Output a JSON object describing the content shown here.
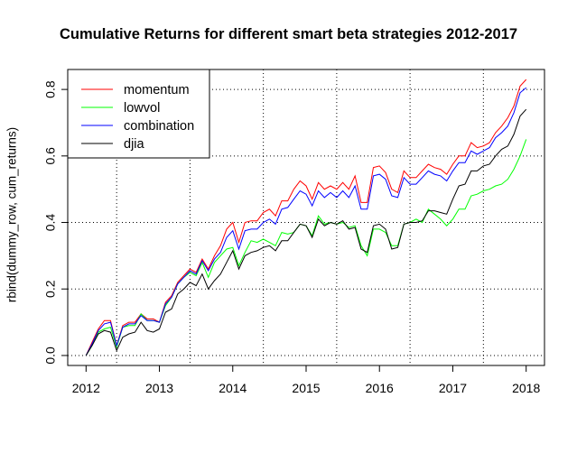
{
  "chart_data": {
    "type": "line",
    "title": "Cumulative Returns for different smart beta strategies 2012-2017",
    "xlabel": "",
    "ylabel": "rbind(dummy_row, cum_returns)",
    "xlim": [
      2011.75,
      2018.25
    ],
    "ylim": [
      -0.03,
      0.86
    ],
    "x_ticks": [
      "2012",
      "2013",
      "2014",
      "2015",
      "2016",
      "2017",
      "2018"
    ],
    "y_ticks": [
      "0.0",
      "0.2",
      "0.4",
      "0.6",
      "0.8"
    ],
    "grid": "dotted",
    "legend": "top-left",
    "series": [
      {
        "name": "momentum",
        "color": "#ff0000",
        "x": [
          2012.0,
          2012.083,
          2012.167,
          2012.25,
          2012.333,
          2012.417,
          2012.5,
          2012.583,
          2012.667,
          2012.75,
          2012.833,
          2012.917,
          2013.0,
          2013.083,
          2013.167,
          2013.25,
          2013.333,
          2013.417,
          2013.5,
          2013.583,
          2013.667,
          2013.75,
          2013.833,
          2013.917,
          2014.0,
          2014.083,
          2014.167,
          2014.25,
          2014.333,
          2014.417,
          2014.5,
          2014.583,
          2014.667,
          2014.75,
          2014.833,
          2014.917,
          2015.0,
          2015.083,
          2015.167,
          2015.25,
          2015.333,
          2015.417,
          2015.5,
          2015.583,
          2015.667,
          2015.75,
          2015.833,
          2015.917,
          2016.0,
          2016.083,
          2016.167,
          2016.25,
          2016.333,
          2016.417,
          2016.5,
          2016.583,
          2016.667,
          2016.75,
          2016.833,
          2016.917,
          2017.0,
          2017.083,
          2017.167,
          2017.25,
          2017.333,
          2017.417,
          2017.5,
          2017.583,
          2017.667,
          2017.75,
          2017.833,
          2017.917,
          2018.0
        ],
        "y": [
          0.0,
          0.04,
          0.08,
          0.105,
          0.105,
          0.03,
          0.09,
          0.1,
          0.1,
          0.125,
          0.11,
          0.11,
          0.1,
          0.16,
          0.18,
          0.22,
          0.24,
          0.26,
          0.25,
          0.29,
          0.26,
          0.3,
          0.33,
          0.38,
          0.4,
          0.34,
          0.4,
          0.405,
          0.405,
          0.43,
          0.44,
          0.42,
          0.465,
          0.465,
          0.5,
          0.525,
          0.51,
          0.47,
          0.52,
          0.5,
          0.51,
          0.5,
          0.52,
          0.5,
          0.54,
          0.46,
          0.46,
          0.565,
          0.57,
          0.55,
          0.5,
          0.49,
          0.555,
          0.535,
          0.535,
          0.555,
          0.575,
          0.565,
          0.56,
          0.545,
          0.575,
          0.6,
          0.6,
          0.64,
          0.625,
          0.63,
          0.64,
          0.67,
          0.69,
          0.715,
          0.75,
          0.81,
          0.83
        ]
      },
      {
        "name": "lowvol",
        "color": "#00ff00",
        "x": [
          2012.0,
          2012.083,
          2012.167,
          2012.25,
          2012.333,
          2012.417,
          2012.5,
          2012.583,
          2012.667,
          2012.75,
          2012.833,
          2012.917,
          2013.0,
          2013.083,
          2013.167,
          2013.25,
          2013.333,
          2013.417,
          2013.5,
          2013.583,
          2013.667,
          2013.75,
          2013.833,
          2013.917,
          2014.0,
          2014.083,
          2014.167,
          2014.25,
          2014.333,
          2014.417,
          2014.5,
          2014.583,
          2014.667,
          2014.75,
          2014.833,
          2014.917,
          2015.0,
          2015.083,
          2015.167,
          2015.25,
          2015.333,
          2015.417,
          2015.5,
          2015.583,
          2015.667,
          2015.75,
          2015.833,
          2015.917,
          2016.0,
          2016.083,
          2016.167,
          2016.25,
          2016.333,
          2016.417,
          2016.5,
          2016.583,
          2016.667,
          2016.75,
          2016.833,
          2016.917,
          2017.0,
          2017.083,
          2017.167,
          2017.25,
          2017.333,
          2017.417,
          2017.5,
          2017.583,
          2017.667,
          2017.75,
          2017.833,
          2017.917,
          2018.0
        ],
        "y": [
          0.0,
          0.03,
          0.07,
          0.08,
          0.085,
          0.025,
          0.085,
          0.09,
          0.09,
          0.125,
          0.105,
          0.105,
          0.1,
          0.15,
          0.175,
          0.215,
          0.235,
          0.25,
          0.24,
          0.28,
          0.235,
          0.28,
          0.3,
          0.32,
          0.325,
          0.27,
          0.31,
          0.345,
          0.34,
          0.35,
          0.34,
          0.33,
          0.37,
          0.365,
          0.37,
          0.395,
          0.39,
          0.36,
          0.42,
          0.395,
          0.4,
          0.395,
          0.4,
          0.385,
          0.39,
          0.33,
          0.3,
          0.38,
          0.38,
          0.37,
          0.33,
          0.33,
          0.395,
          0.4,
          0.41,
          0.4,
          0.44,
          0.425,
          0.41,
          0.39,
          0.41,
          0.44,
          0.44,
          0.48,
          0.485,
          0.495,
          0.5,
          0.51,
          0.515,
          0.53,
          0.56,
          0.6,
          0.65
        ]
      },
      {
        "name": "combination",
        "color": "#0000ff",
        "x": [
          2012.0,
          2012.083,
          2012.167,
          2012.25,
          2012.333,
          2012.417,
          2012.5,
          2012.583,
          2012.667,
          2012.75,
          2012.833,
          2012.917,
          2013.0,
          2013.083,
          2013.167,
          2013.25,
          2013.333,
          2013.417,
          2013.5,
          2013.583,
          2013.667,
          2013.75,
          2013.833,
          2013.917,
          2014.0,
          2014.083,
          2014.167,
          2014.25,
          2014.333,
          2014.417,
          2014.5,
          2014.583,
          2014.667,
          2014.75,
          2014.833,
          2014.917,
          2015.0,
          2015.083,
          2015.167,
          2015.25,
          2015.333,
          2015.417,
          2015.5,
          2015.583,
          2015.667,
          2015.75,
          2015.833,
          2015.917,
          2016.0,
          2016.083,
          2016.167,
          2016.25,
          2016.333,
          2016.417,
          2016.5,
          2016.583,
          2016.667,
          2016.75,
          2016.833,
          2016.917,
          2017.0,
          2017.083,
          2017.167,
          2017.25,
          2017.333,
          2017.417,
          2017.5,
          2017.583,
          2017.667,
          2017.75,
          2017.833,
          2017.917,
          2018.0
        ],
        "y": [
          0.0,
          0.035,
          0.075,
          0.095,
          0.1,
          0.03,
          0.085,
          0.095,
          0.095,
          0.12,
          0.105,
          0.105,
          0.1,
          0.155,
          0.175,
          0.215,
          0.235,
          0.255,
          0.245,
          0.285,
          0.255,
          0.29,
          0.31,
          0.355,
          0.375,
          0.32,
          0.375,
          0.38,
          0.38,
          0.4,
          0.41,
          0.395,
          0.44,
          0.445,
          0.47,
          0.495,
          0.485,
          0.45,
          0.495,
          0.475,
          0.49,
          0.475,
          0.495,
          0.475,
          0.51,
          0.44,
          0.44,
          0.54,
          0.545,
          0.53,
          0.48,
          0.475,
          0.535,
          0.515,
          0.515,
          0.535,
          0.555,
          0.545,
          0.54,
          0.525,
          0.555,
          0.58,
          0.58,
          0.615,
          0.605,
          0.615,
          0.625,
          0.655,
          0.67,
          0.69,
          0.73,
          0.79,
          0.805
        ]
      },
      {
        "name": "djia",
        "color": "#000000",
        "x": [
          2012.0,
          2012.083,
          2012.167,
          2012.25,
          2012.333,
          2012.417,
          2012.5,
          2012.583,
          2012.667,
          2012.75,
          2012.833,
          2012.917,
          2013.0,
          2013.083,
          2013.167,
          2013.25,
          2013.333,
          2013.417,
          2013.5,
          2013.583,
          2013.667,
          2013.75,
          2013.833,
          2013.917,
          2014.0,
          2014.083,
          2014.167,
          2014.25,
          2014.333,
          2014.417,
          2014.5,
          2014.583,
          2014.667,
          2014.75,
          2014.833,
          2014.917,
          2015.0,
          2015.083,
          2015.167,
          2015.25,
          2015.333,
          2015.417,
          2015.5,
          2015.583,
          2015.667,
          2015.75,
          2015.833,
          2015.917,
          2016.0,
          2016.083,
          2016.167,
          2016.25,
          2016.333,
          2016.417,
          2016.5,
          2016.583,
          2016.667,
          2016.75,
          2016.833,
          2016.917,
          2017.0,
          2017.083,
          2017.167,
          2017.25,
          2017.333,
          2017.417,
          2017.5,
          2017.583,
          2017.667,
          2017.75,
          2017.833,
          2017.917,
          2018.0
        ],
        "y": [
          0.0,
          0.03,
          0.065,
          0.075,
          0.07,
          0.015,
          0.055,
          0.065,
          0.07,
          0.1,
          0.075,
          0.07,
          0.08,
          0.13,
          0.14,
          0.185,
          0.2,
          0.22,
          0.21,
          0.245,
          0.2,
          0.225,
          0.245,
          0.28,
          0.315,
          0.26,
          0.3,
          0.31,
          0.315,
          0.325,
          0.33,
          0.315,
          0.345,
          0.345,
          0.37,
          0.395,
          0.39,
          0.355,
          0.41,
          0.39,
          0.4,
          0.395,
          0.405,
          0.38,
          0.385,
          0.32,
          0.31,
          0.39,
          0.395,
          0.38,
          0.32,
          0.325,
          0.395,
          0.4,
          0.4,
          0.405,
          0.435,
          0.435,
          0.43,
          0.425,
          0.47,
          0.51,
          0.515,
          0.555,
          0.555,
          0.57,
          0.575,
          0.6,
          0.62,
          0.63,
          0.665,
          0.72,
          0.74
        ]
      }
    ]
  }
}
